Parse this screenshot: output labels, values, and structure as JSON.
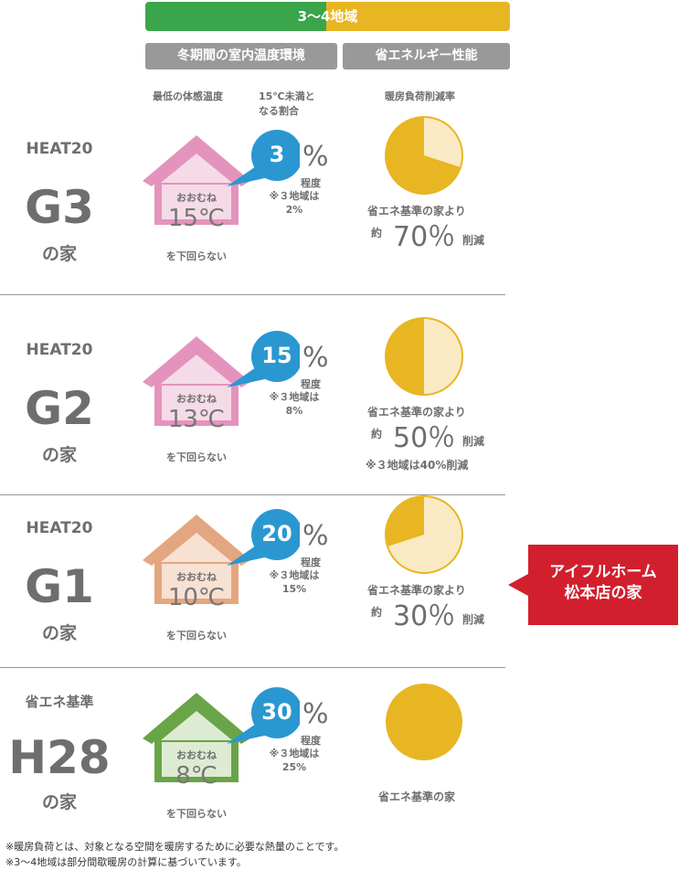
{
  "header": {
    "region": "3〜4地域",
    "col1": "冬期間の室内温度環境",
    "col2": "省エネルギー性能",
    "sub_min_temp": "最低の体感温度",
    "sub_ratio_l1": "15℃未満と",
    "sub_ratio_l2": "なる割合",
    "sub_reduction": "暖房負荷削減率"
  },
  "common": {
    "approx": "おおむね",
    "not_below": "を下回らない",
    "pct_sign": "%",
    "degree": "程度",
    "about": "約",
    "reduction": "削減",
    "saving_prefix": "省エネ基準の家より",
    "note_region3": "※３地域は"
  },
  "rows": [
    {
      "top": "HEAT20",
      "big": "G3",
      "ie": "の家",
      "temp": "15℃",
      "ratio": "3",
      "ratio_r3": "2%",
      "reduction": "70％",
      "house_color": "#e493bd",
      "house_fill": "#f5dbe8",
      "savings_frac": 0.7
    },
    {
      "top": "HEAT20",
      "big": "G2",
      "ie": "の家",
      "temp": "13℃",
      "ratio": "15",
      "ratio_r3": "8%",
      "reduction": "50％",
      "extra": "※３地域は40%削減",
      "house_color": "#e493bd",
      "house_fill": "#f5dbe8",
      "savings_frac": 0.5
    },
    {
      "top": "HEAT20",
      "big": "G1",
      "ie": "の家",
      "temp": "10℃",
      "ratio": "20",
      "ratio_r3": "15%",
      "reduction": "30％",
      "house_color": "#e4a680",
      "house_fill": "#f7e1d3",
      "savings_frac": 0.3
    },
    {
      "top": "省エネ基準",
      "big": "H28",
      "ie": "の家",
      "temp": "8℃",
      "ratio": "30",
      "ratio_r3": "25%",
      "base_label": "省エネ基準の家",
      "house_color": "#6aa448",
      "house_fill": "#deebd3",
      "savings_frac": 0
    }
  ],
  "callout": {
    "line1": "アイフルホーム",
    "line2": "松本店の家",
    "color": "#d11f2e"
  },
  "footnotes": [
    "※暖房負荷とは、対象となる空間を暖房するために必要な熱量のことです。",
    "※3〜4地域は部分間歇暖房の計算に基づいています。"
  ],
  "colors": {
    "green": "#3aa54a",
    "yellow": "#e8b623",
    "pie_light": "#faeac4",
    "bubble": "#2a97d1"
  }
}
